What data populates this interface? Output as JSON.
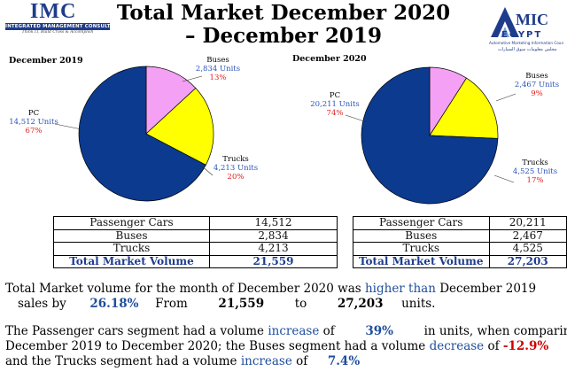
{
  "brand_left": {
    "mark": "IMC",
    "band": "INTEGRATED MANAGEMENT CONSULTANCY",
    "tagline": "Think IT, Build Cross & Accomplish"
  },
  "brand_right": {
    "mark": "AMIC",
    "sub": "EGYPT",
    "tagline": "Automotive Marketing Information Council",
    "arabic": "مجلس معلومات سوق السيارات"
  },
  "title_line1": "Total Market December 2020",
  "title_line2": "– December 2019",
  "chart_data": [
    {
      "type": "pie",
      "title": "December 2019",
      "slices": [
        {
          "name": "PC",
          "value": 14512,
          "value_label": "14,512 Units",
          "pct_label": "67%",
          "color": "#0b3a8f"
        },
        {
          "name": "Trucks",
          "value": 4213,
          "value_label": "4,213 Units",
          "pct_label": "20%",
          "color": "#ffff00"
        },
        {
          "name": "Buses",
          "value": 2834,
          "value_label": "2,834 Units",
          "pct_label": "13%",
          "color": "#f4a0f4"
        }
      ]
    },
    {
      "type": "pie",
      "title": "December 2020",
      "slices": [
        {
          "name": "PC",
          "value": 20211,
          "value_label": "20,211 Units",
          "pct_label": "74%",
          "color": "#0b3a8f"
        },
        {
          "name": "Trucks",
          "value": 4525,
          "value_label": "4,525 Units",
          "pct_label": "17%",
          "color": "#ffff00"
        },
        {
          "name": "Buses",
          "value": 2467,
          "value_label": "2,467 Units",
          "pct_label": "9%",
          "color": "#f4a0f4"
        }
      ]
    }
  ],
  "tables": [
    {
      "rows": [
        {
          "label": "Passenger Cars",
          "value": "14,512"
        },
        {
          "label": "Buses",
          "value": "2,834"
        },
        {
          "label": "Trucks",
          "value": "4,213"
        }
      ],
      "total": {
        "label": "Total Market Volume",
        "value": "21,559"
      }
    },
    {
      "rows": [
        {
          "label": "Passenger Cars",
          "value": "20,211"
        },
        {
          "label": "Buses",
          "value": "2,467"
        },
        {
          "label": "Trucks",
          "value": "4,525"
        }
      ],
      "total": {
        "label": "Total Market Volume",
        "value": "27,203"
      }
    }
  ],
  "summary": {
    "p1_a": "Total Market volume for the month of December 2020 was",
    "p1_b": "higher than",
    "p1_c": "December 2019",
    "p2_a": "sales by",
    "p2_pct": "26.18%",
    "p2_from": "From",
    "p2_v1": "21,559",
    "p2_to": "to",
    "p2_v2": "27,203",
    "p2_units": "units.",
    "p3_a": "The Passenger cars segment had a volume",
    "p3_inc": "increase",
    "p3_of": "of",
    "p3_pct": "39%",
    "p3_b": "in units, when comparing",
    "p4_a": "December 2019 to December 2020; the Buses segment had a volume",
    "p4_dec": "decrease",
    "p4_of": "of",
    "p4_pct": "-12.9%",
    "p5_a": "and the Trucks segment had a volume",
    "p5_inc": "increase",
    "p5_of": "of",
    "p5_pct": "7.4%"
  }
}
